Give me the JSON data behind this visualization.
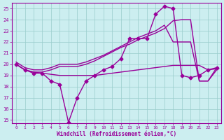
{
  "xlabel": "Windchill (Refroidissement éolien,°C)",
  "background_color": "#cceef0",
  "grid_color": "#99cccc",
  "line_color": "#990099",
  "x_ticks": [
    0,
    1,
    2,
    3,
    4,
    5,
    6,
    7,
    8,
    9,
    10,
    11,
    12,
    13,
    14,
    15,
    16,
    17,
    18,
    19,
    20,
    21,
    22,
    23
  ],
  "ylim": [
    14.7,
    25.5
  ],
  "xlim": [
    -0.5,
    23.5
  ],
  "yticks": [
    15,
    16,
    17,
    18,
    19,
    20,
    21,
    22,
    23,
    24,
    25
  ],
  "series1_x": [
    0,
    1,
    2,
    3,
    4,
    5,
    6,
    7,
    8,
    9,
    10,
    11,
    12,
    13,
    14,
    15,
    16,
    17,
    18,
    19,
    20,
    21,
    22,
    23
  ],
  "series1_y": [
    20.0,
    19.5,
    19.2,
    19.2,
    18.5,
    18.2,
    14.8,
    17.0,
    18.5,
    19.0,
    19.5,
    19.8,
    20.5,
    22.3,
    22.3,
    22.3,
    24.5,
    25.2,
    25.0,
    19.0,
    18.8,
    19.0,
    19.5,
    19.7
  ],
  "series2_x": [
    0,
    1,
    2,
    3,
    4,
    5,
    6,
    7,
    8,
    9,
    10,
    11,
    12,
    13,
    14,
    15,
    16,
    17,
    18,
    19,
    20,
    21,
    22,
    23
  ],
  "series2_y": [
    20.0,
    19.5,
    19.3,
    19.2,
    19.1,
    19.0,
    19.0,
    19.0,
    19.0,
    19.0,
    19.1,
    19.2,
    19.3,
    19.4,
    19.5,
    19.6,
    19.7,
    19.8,
    19.9,
    19.9,
    19.9,
    19.9,
    19.5,
    19.6
  ],
  "series3_x": [
    0,
    1,
    2,
    3,
    4,
    5,
    6,
    7,
    8,
    9,
    10,
    11,
    12,
    13,
    14,
    15,
    16,
    17,
    18,
    19,
    20,
    21,
    22,
    23
  ],
  "series3_y": [
    20.0,
    19.5,
    19.3,
    19.3,
    19.5,
    19.8,
    19.8,
    19.8,
    20.0,
    20.3,
    20.7,
    21.1,
    21.5,
    21.8,
    22.2,
    22.5,
    22.8,
    23.2,
    23.9,
    24.0,
    24.0,
    18.5,
    18.5,
    19.7
  ],
  "series4_x": [
    0,
    1,
    2,
    3,
    4,
    5,
    6,
    7,
    8,
    9,
    10,
    11,
    12,
    13,
    14,
    15,
    16,
    17,
    18,
    19,
    20,
    21,
    22,
    23
  ],
  "series4_y": [
    20.2,
    19.7,
    19.5,
    19.5,
    19.7,
    20.0,
    20.0,
    20.0,
    20.2,
    20.5,
    20.8,
    21.2,
    21.6,
    22.0,
    22.4,
    22.7,
    23.0,
    23.5,
    22.0,
    22.0,
    22.0,
    18.5,
    18.5,
    19.5
  ]
}
